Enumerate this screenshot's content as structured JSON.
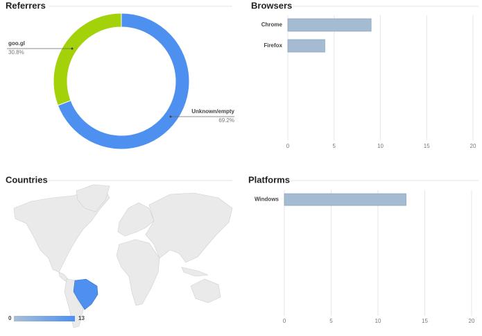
{
  "chart_data": [
    {
      "type": "pie",
      "title": "Referrers",
      "donut": true,
      "categories": [
        "goo.gl",
        "Unknown/empty"
      ],
      "values": [
        30.8,
        69.2
      ],
      "value_labels": [
        "30.8%",
        "69.2%"
      ],
      "colors": [
        "#a3d10a",
        "#4d90f0"
      ]
    },
    {
      "type": "hbar",
      "title": "Browsers",
      "categories": [
        "Chrome",
        "Firefox"
      ],
      "values": [
        9,
        4
      ],
      "color": "#a4bbd1",
      "xlim": [
        0,
        20
      ],
      "xticks": [
        0,
        5,
        10,
        15,
        20
      ],
      "grid": true
    },
    {
      "type": "map",
      "title": "Countries",
      "categories": [
        null
      ],
      "values": [
        13
      ],
      "color": "#4d90f0",
      "scale_colors": [
        "#a9bfd6",
        "#4d90f0"
      ],
      "scale": [
        0,
        13
      ]
    },
    {
      "type": "hbar",
      "title": "Platforms",
      "categories": [
        "Windows"
      ],
      "values": [
        13
      ],
      "color": "#a4bbd1",
      "xlim": [
        0,
        20
      ],
      "xticks": [
        0,
        5,
        10,
        15,
        20
      ],
      "grid": true
    }
  ]
}
